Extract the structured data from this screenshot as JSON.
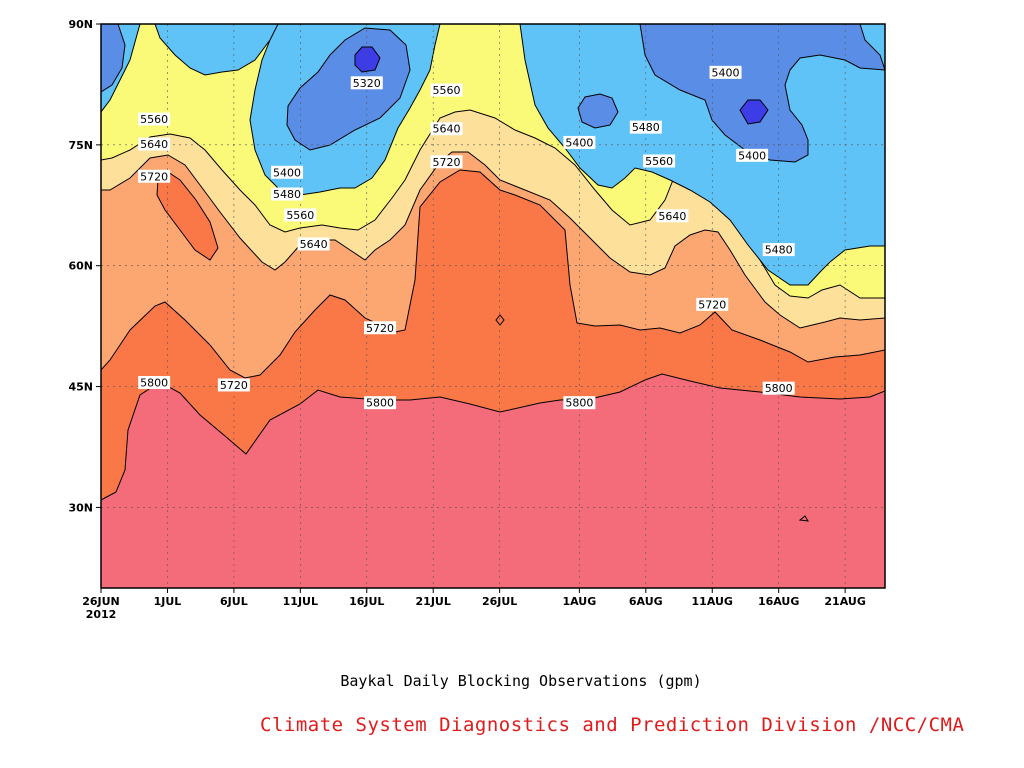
{
  "caption": "Baykal Daily Blocking Observations (gpm)",
  "credit": "Climate System Diagnostics and Prediction Division /NCC/CMA",
  "chart_data": {
    "type": "contour",
    "xlabel": "",
    "ylabel": "",
    "x_range": [
      "2012-06-26",
      "2012-08-24"
    ],
    "y_range": [
      20,
      90
    ],
    "x_ticks": [
      "26JUN",
      "1JUL",
      "6JUL",
      "11JUL",
      "16JUL",
      "21JUL",
      "26JUL",
      "1AUG",
      "6AUG",
      "11AUG",
      "16AUG",
      "21AUG"
    ],
    "x_tick_dates": [
      "2012-06-26",
      "2012-07-01",
      "2012-07-06",
      "2012-07-11",
      "2012-07-16",
      "2012-07-21",
      "2012-07-26",
      "2012-08-01",
      "2012-08-06",
      "2012-08-11",
      "2012-08-16",
      "2012-08-21"
    ],
    "x_year_label": "2012",
    "y_ticks": [
      "30N",
      "45N",
      "60N",
      "75N",
      "90N"
    ],
    "y_tick_values": [
      30,
      45,
      60,
      75,
      90
    ],
    "grid": true,
    "levels": [
      5320,
      5400,
      5480,
      5560,
      5640,
      5720,
      5800
    ],
    "level_colors": {
      "below_5320": "#3d3de8",
      "5320_5400": "#5a8de6",
      "5400_5480": "#5fc3f7",
      "5480_5560": "#fafa78",
      "5560_5640": "#fde09a",
      "5640_5720": "#fca772",
      "5720_5800": "#fa7747",
      "above_5800": "#f46c7a"
    },
    "contour_labels": [
      {
        "value": "5320",
        "date": "2012-07-16",
        "lat": 82.7
      },
      {
        "value": "5560",
        "date": "2012-06-30",
        "lat": 78.2
      },
      {
        "value": "5640",
        "date": "2012-06-30",
        "lat": 75.1
      },
      {
        "value": "5720",
        "date": "2012-06-30",
        "lat": 71.1
      },
      {
        "value": "5400",
        "date": "2012-07-10",
        "lat": 71.6
      },
      {
        "value": "5480",
        "date": "2012-07-10",
        "lat": 68.9
      },
      {
        "value": "5560",
        "date": "2012-07-11",
        "lat": 66.3
      },
      {
        "value": "5640",
        "date": "2012-07-12",
        "lat": 62.7
      },
      {
        "value": "5560",
        "date": "2012-07-22",
        "lat": 81.8
      },
      {
        "value": "5640",
        "date": "2012-07-22",
        "lat": 77.0
      },
      {
        "value": "5720",
        "date": "2012-07-22",
        "lat": 72.9
      },
      {
        "value": "5400",
        "date": "2012-08-01",
        "lat": 75.3
      },
      {
        "value": "5480",
        "date": "2012-08-06",
        "lat": 77.2
      },
      {
        "value": "5560",
        "date": "2012-08-07",
        "lat": 73.0
      },
      {
        "value": "5640",
        "date": "2012-08-08",
        "lat": 66.2
      },
      {
        "value": "5400",
        "date": "2012-08-12",
        "lat": 84.0
      },
      {
        "value": "5400",
        "date": "2012-08-14",
        "lat": 73.7
      },
      {
        "value": "5480",
        "date": "2012-08-16",
        "lat": 62.0
      },
      {
        "value": "5720",
        "date": "2012-07-17",
        "lat": 52.3
      },
      {
        "value": "5720",
        "date": "2012-08-11",
        "lat": 55.2
      },
      {
        "value": "5800",
        "date": "2012-06-30",
        "lat": 45.5
      },
      {
        "value": "5720",
        "date": "2012-07-06",
        "lat": 45.2
      },
      {
        "value": "5800",
        "date": "2012-07-17",
        "lat": 43.0
      },
      {
        "value": "5800",
        "date": "2012-08-01",
        "lat": 43.0
      },
      {
        "value": "5800",
        "date": "2012-08-16",
        "lat": 44.8
      }
    ]
  }
}
